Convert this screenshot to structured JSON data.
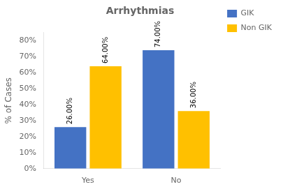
{
  "chart_data": {
    "type": "bar",
    "title": "Arrhythmias",
    "categories": [
      "Yes",
      "No"
    ],
    "series": [
      {
        "name": "GIK",
        "color": "#4472C4",
        "values": [
          26,
          74
        ],
        "value_labels": [
          "26.00%",
          "74.00%"
        ]
      },
      {
        "name": "Non GIK",
        "color": "#FFC000",
        "values": [
          64,
          36
        ],
        "value_labels": [
          "64.00%",
          "36.00%"
        ]
      }
    ],
    "ylabel": "% of Cases",
    "ylim": [
      0,
      85
    ],
    "yticks": [
      {
        "value": 0,
        "label": "0%"
      },
      {
        "value": 10,
        "label": "10%"
      },
      {
        "value": 20,
        "label": "20%"
      },
      {
        "value": 30,
        "label": "30%"
      },
      {
        "value": 40,
        "label": "40%"
      },
      {
        "value": 50,
        "label": "50%"
      },
      {
        "value": 60,
        "label": "60%"
      },
      {
        "value": 70,
        "label": "70%"
      },
      {
        "value": 80,
        "label": "80%"
      }
    ],
    "grid": false,
    "legend": "right",
    "data_labels": true
  }
}
